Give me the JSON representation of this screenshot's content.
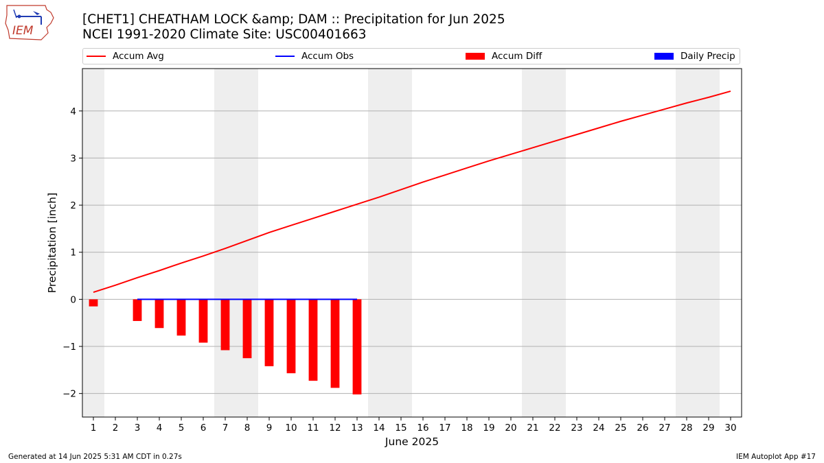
{
  "header": {
    "title_line1": "[CHET1] CHEATHAM LOCK &amp; DAM :: Precipitation for Jun 2025",
    "title_line2": "NCEI 1991-2020 Climate Site: USC00401663",
    "logo_text": "IEM"
  },
  "legend": [
    {
      "label": "Accum Avg",
      "kind": "line",
      "color": "#ff0000"
    },
    {
      "label": "Accum Obs",
      "kind": "line",
      "color": "#0000ff"
    },
    {
      "label": "Accum Diff",
      "kind": "box",
      "color": "#ff0000"
    },
    {
      "label": "Daily Precip",
      "kind": "box",
      "color": "#0000ff"
    }
  ],
  "footer": {
    "generated": "Generated at 14 Jun 2025 5:31 AM CDT in 0.27s",
    "app": "IEM Autoplot App #17"
  },
  "chart_data": {
    "type": "bar",
    "xlabel": "June 2025",
    "ylabel": "Precipitation [inch]",
    "xlim": [
      0.5,
      30.5
    ],
    "ylim": [
      -2.5,
      4.9
    ],
    "yticks": [
      -2,
      -1,
      0,
      1,
      2,
      3,
      4
    ],
    "ytick_labels": [
      "−2",
      "−1",
      "0",
      "1",
      "2",
      "3",
      "4"
    ],
    "xticks": [
      1,
      2,
      3,
      4,
      5,
      6,
      7,
      8,
      9,
      10,
      11,
      12,
      13,
      14,
      15,
      16,
      17,
      18,
      19,
      20,
      21,
      22,
      23,
      24,
      25,
      26,
      27,
      28,
      29,
      30
    ],
    "grid": "horizontal",
    "weekend_shading": [
      [
        0.5,
        1.5
      ],
      [
        6.5,
        8.5
      ],
      [
        13.5,
        15.5
      ],
      [
        20.5,
        22.5
      ],
      [
        27.5,
        29.5
      ]
    ],
    "colors": {
      "avg": "#ff0000",
      "obs": "#0000ff",
      "diff": "#ff0000",
      "daily": "#0000ff",
      "weekend": "#eeeeee",
      "grid": "#b0b0b0"
    },
    "series": [
      {
        "name": "Accum Avg",
        "type": "line",
        "x": [
          1,
          2,
          3,
          4,
          5,
          6,
          7,
          8,
          9,
          10,
          11,
          12,
          13,
          14,
          15,
          16,
          17,
          18,
          19,
          20,
          21,
          22,
          23,
          24,
          25,
          26,
          27,
          28,
          29,
          30
        ],
        "values": [
          0.15,
          0.3,
          0.46,
          0.61,
          0.77,
          0.92,
          1.08,
          1.25,
          1.42,
          1.57,
          1.72,
          1.87,
          2.02,
          2.17,
          2.33,
          2.49,
          2.64,
          2.79,
          2.94,
          3.08,
          3.22,
          3.36,
          3.5,
          3.64,
          3.78,
          3.91,
          4.04,
          4.17,
          4.29,
          4.42
        ]
      },
      {
        "name": "Accum Obs",
        "type": "line",
        "x": [
          3,
          4,
          5,
          6,
          7,
          8,
          9,
          10,
          11,
          12,
          13
        ],
        "values": [
          0,
          0,
          0,
          0,
          0,
          0,
          0,
          0,
          0,
          0,
          0
        ]
      },
      {
        "name": "Accum Diff",
        "type": "bar",
        "x": [
          1,
          3,
          4,
          5,
          6,
          7,
          8,
          9,
          10,
          11,
          12,
          13
        ],
        "values": [
          -0.15,
          -0.46,
          -0.61,
          -0.77,
          -0.92,
          -1.08,
          -1.25,
          -1.42,
          -1.57,
          -1.73,
          -1.88,
          -2.02
        ]
      },
      {
        "name": "Daily Precip",
        "type": "bar",
        "x": [],
        "values": []
      }
    ]
  }
}
